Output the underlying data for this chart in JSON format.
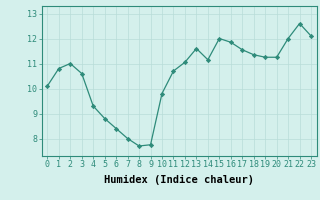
{
  "x": [
    0,
    1,
    2,
    3,
    4,
    5,
    6,
    7,
    8,
    9,
    10,
    11,
    12,
    13,
    14,
    15,
    16,
    17,
    18,
    19,
    20,
    21,
    22,
    23
  ],
  "y": [
    10.1,
    10.8,
    11.0,
    10.6,
    9.3,
    8.8,
    8.4,
    8.0,
    7.7,
    7.75,
    9.8,
    10.7,
    11.05,
    11.6,
    11.15,
    12.0,
    11.85,
    11.55,
    11.35,
    11.25,
    11.25,
    12.0,
    12.6,
    12.1
  ],
  "line_color": "#2e8b7a",
  "marker": "D",
  "marker_size": 2.2,
  "bg_color": "#d4f0ec",
  "grid_color": "#b8ddd8",
  "xlabel": "Humidex (Indice chaleur)",
  "xlabel_fontsize": 7.5,
  "xlim": [
    -0.5,
    23.5
  ],
  "ylim": [
    7.3,
    13.3
  ],
  "yticks": [
    8,
    9,
    10,
    11,
    12,
    13
  ],
  "xticks": [
    0,
    1,
    2,
    3,
    4,
    5,
    6,
    7,
    8,
    9,
    10,
    11,
    12,
    13,
    14,
    15,
    16,
    17,
    18,
    19,
    20,
    21,
    22,
    23
  ],
  "tick_fontsize": 6.0,
  "spine_color": "#2e8b7a"
}
